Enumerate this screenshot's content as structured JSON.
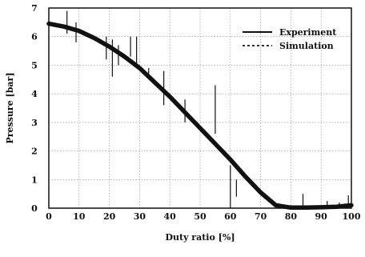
{
  "chart_data": {
    "type": "line",
    "xlabel": "Duty ratio [%]",
    "ylabel": "Pressure [bar]",
    "xlim": [
      0,
      100
    ],
    "ylim": [
      0,
      7
    ],
    "xticks": [
      "0",
      "10",
      "20",
      "30",
      "40",
      "50",
      "60",
      "70",
      "80",
      "90",
      "100"
    ],
    "yticks": [
      "0",
      "1",
      "2",
      "3",
      "4",
      "5",
      "6",
      "7"
    ],
    "grid": true,
    "legend_position": "top-right",
    "series": [
      {
        "name": "Experiment",
        "style": "solid-noisy",
        "x": [
          0,
          5,
          10,
          15,
          20,
          25,
          30,
          35,
          40,
          45,
          50,
          55,
          60,
          65,
          70,
          75,
          80,
          85,
          90,
          95,
          100
        ],
        "y": [
          6.45,
          6.35,
          6.2,
          5.95,
          5.65,
          5.3,
          4.9,
          4.4,
          3.9,
          3.35,
          2.8,
          2.25,
          1.7,
          1.1,
          0.55,
          0.1,
          0.02,
          0.02,
          0.03,
          0.05,
          0.1
        ]
      },
      {
        "name": "Simulation",
        "style": "dotted",
        "x": [
          0,
          5,
          10,
          15,
          20,
          25,
          30,
          35,
          40,
          45,
          50,
          55,
          60,
          65,
          70,
          75,
          80
        ],
        "y": [
          6.4,
          6.3,
          6.15,
          5.9,
          5.6,
          5.25,
          4.85,
          4.35,
          3.85,
          3.3,
          2.75,
          2.2,
          1.65,
          1.05,
          0.5,
          0.1,
          0.0
        ]
      }
    ],
    "spikes": [
      {
        "x": 6,
        "y1": 6.1,
        "y2": 6.9
      },
      {
        "x": 9,
        "y1": 5.8,
        "y2": 6.5
      },
      {
        "x": 19,
        "y1": 5.2,
        "y2": 6.0
      },
      {
        "x": 21,
        "y1": 4.6,
        "y2": 5.9
      },
      {
        "x": 23,
        "y1": 5.0,
        "y2": 5.7
      },
      {
        "x": 27,
        "y1": 5.3,
        "y2": 6.0
      },
      {
        "x": 29,
        "y1": 5.0,
        "y2": 6.0
      },
      {
        "x": 33,
        "y1": 4.5,
        "y2": 4.9
      },
      {
        "x": 38,
        "y1": 3.6,
        "y2": 4.8
      },
      {
        "x": 45,
        "y1": 3.0,
        "y2": 3.8
      },
      {
        "x": 55,
        "y1": 2.6,
        "y2": 4.3
      },
      {
        "x": 60,
        "y1": 0.0,
        "y2": 1.5
      },
      {
        "x": 62,
        "y1": 0.4,
        "y2": 1.0
      },
      {
        "x": 84,
        "y1": 0.0,
        "y2": 0.5
      },
      {
        "x": 92,
        "y1": 0.0,
        "y2": 0.25
      },
      {
        "x": 96,
        "y1": 0.0,
        "y2": 0.2
      },
      {
        "x": 99,
        "y1": 0.0,
        "y2": 0.45
      }
    ]
  }
}
